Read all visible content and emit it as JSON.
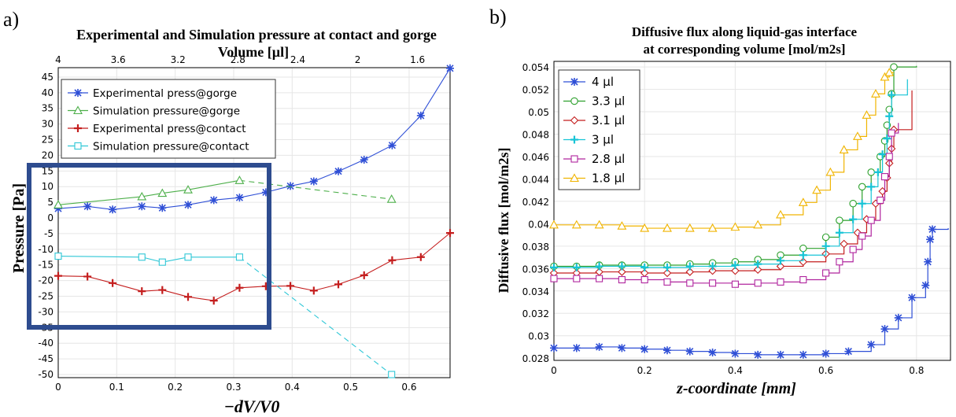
{
  "panel_labels": {
    "a": "a)",
    "b": "b)"
  },
  "chart_data": [
    {
      "type": "line",
      "panel": "a",
      "title": "Experimental and Simulation pressure at contact and gorge",
      "top_axis_label": "Volume [µl]",
      "top_ticks": [
        "4",
        "3.6",
        "3.2",
        "2.8",
        "2.4",
        "2",
        "1.6"
      ],
      "xlabel": "−dV/V0",
      "ylabel": "Pressure [Pa]",
      "xlim": [
        0,
        0.67
      ],
      "ylim": [
        -51,
        48
      ],
      "xticks": [
        0,
        0.1,
        0.2,
        0.3,
        0.4,
        0.5,
        0.6
      ],
      "xtick_labels": [
        "0",
        "0.1",
        "0.2",
        "0.3",
        "0.4",
        "0.5",
        "0.6"
      ],
      "yticks": [
        45,
        40,
        35,
        30,
        25,
        20,
        15,
        10,
        5,
        0,
        -5,
        -10,
        -15,
        -20,
        -25,
        -30,
        -35,
        -40,
        -45,
        -50
      ],
      "ytick_labels": [
        "45",
        "40",
        "35",
        "30",
        "25",
        "20",
        "15",
        "10",
        "5",
        "0",
        "-5",
        "-10",
        "-15",
        "-20",
        "-25",
        "-30",
        "-35",
        "-40",
        "-45",
        "-50"
      ],
      "grid": true,
      "legend_position": "top-left",
      "series": [
        {
          "name": "Experimental press@gorge",
          "color": "#2f4fd6",
          "marker": "star",
          "dashed": false,
          "x": [
            0,
            0.05,
            0.093,
            0.143,
            0.178,
            0.222,
            0.266,
            0.31,
            0.355,
            0.397,
            0.437,
            0.479,
            0.523,
            0.571,
            0.62,
            0.67
          ],
          "y": [
            3,
            3.7,
            2.7,
            3.7,
            3.2,
            4.2,
            5.7,
            6.5,
            8.2,
            10.2,
            11.7,
            14.9,
            18.6,
            23.2,
            32.7,
            47.8
          ]
        },
        {
          "name": "Simulation pressure@gorge",
          "color": "#4daf4a",
          "marker": "triangle",
          "dashed_after_index": 5,
          "x": [
            0,
            0.143,
            0.178,
            0.222,
            0.31,
            0.57
          ],
          "y": [
            4.2,
            6.8,
            7.9,
            9.0,
            12.0,
            6.0
          ]
        },
        {
          "name": "Experimental press@contact",
          "color": "#c41e1e",
          "marker": "plus",
          "dashed": false,
          "x": [
            0,
            0.05,
            0.093,
            0.143,
            0.178,
            0.222,
            0.266,
            0.31,
            0.355,
            0.397,
            0.437,
            0.479,
            0.523,
            0.571,
            0.62,
            0.67
          ],
          "y": [
            -18.5,
            -18.7,
            -20.8,
            -23.4,
            -23.0,
            -25.2,
            -26.4,
            -22.3,
            -21.8,
            -21.7,
            -23.2,
            -21.2,
            -18.3,
            -13.5,
            -12.5,
            -4.8
          ]
        },
        {
          "name": "Simulation pressure@contact",
          "color": "#2fc7d6",
          "marker": "square",
          "dashed_after_index": 5,
          "x": [
            0,
            0.143,
            0.178,
            0.222,
            0.31,
            0.57
          ],
          "y": [
            -12.2,
            -12.5,
            -14.1,
            -12.5,
            -12.5,
            -50
          ]
        }
      ]
    },
    {
      "type": "line",
      "panel": "b",
      "title": "Diffusive flux along liquid-gas interface",
      "subtitle": "at corresponding volume [mol/m2s]",
      "xlabel": "z-coordinate [mm]",
      "ylabel": "Diffusive flux [mol/m2s]",
      "xlim": [
        0,
        0.875
      ],
      "ylim": [
        0.0278,
        0.0545
      ],
      "xticks": [
        0,
        0.2,
        0.4,
        0.6,
        0.8
      ],
      "xtick_labels": [
        "0",
        "0.2",
        "0.4",
        "0.6",
        "0.8"
      ],
      "yticks": [
        0.028,
        0.03,
        0.032,
        0.034,
        0.036,
        0.038,
        0.04,
        0.042,
        0.044,
        0.046,
        0.048,
        0.05,
        0.052,
        0.054
      ],
      "ytick_labels": [
        "0.028",
        "0.03",
        "0.032",
        "0.034",
        "0.036",
        "0.038",
        "0.04",
        "0.042",
        "0.044",
        "0.046",
        "0.048",
        "0.05",
        "0.052",
        "0.054"
      ],
      "grid": true,
      "legend_position": "top-left",
      "series": [
        {
          "name": "4 µl",
          "color": "#2f4fd6",
          "marker": "star",
          "x": [
            0,
            0.05,
            0.1,
            0.15,
            0.2,
            0.25,
            0.3,
            0.35,
            0.4,
            0.45,
            0.5,
            0.55,
            0.6,
            0.65,
            0.7,
            0.73,
            0.76,
            0.79,
            0.82,
            0.825,
            0.83,
            0.835,
            0.87
          ],
          "y": [
            0.0289,
            0.0289,
            0.029,
            0.0289,
            0.0288,
            0.0287,
            0.0286,
            0.0285,
            0.0284,
            0.0283,
            0.0283,
            0.0283,
            0.0284,
            0.0286,
            0.0292,
            0.0306,
            0.0316,
            0.0334,
            0.0345,
            0.0366,
            0.0386,
            0.0395,
            0.0396
          ]
        },
        {
          "name": "3.3 µl",
          "color": "#2ca02c",
          "marker": "circle",
          "x": [
            0,
            0.05,
            0.1,
            0.15,
            0.2,
            0.25,
            0.3,
            0.35,
            0.4,
            0.45,
            0.5,
            0.55,
            0.6,
            0.63,
            0.66,
            0.68,
            0.7,
            0.72,
            0.73,
            0.735,
            0.74,
            0.745,
            0.75,
            0.8
          ],
          "y": [
            0.0362,
            0.0362,
            0.0363,
            0.0363,
            0.0363,
            0.0363,
            0.0364,
            0.0365,
            0.0366,
            0.0368,
            0.0372,
            0.0378,
            0.0388,
            0.0403,
            0.0418,
            0.0433,
            0.0446,
            0.046,
            0.0474,
            0.0488,
            0.0502,
            0.0516,
            0.054,
            0.0541
          ]
        },
        {
          "name": "3.1 µl",
          "color": "#c41e1e",
          "marker": "diamond",
          "x": [
            0,
            0.05,
            0.1,
            0.15,
            0.2,
            0.25,
            0.3,
            0.35,
            0.4,
            0.45,
            0.5,
            0.55,
            0.6,
            0.64,
            0.67,
            0.69,
            0.71,
            0.725,
            0.735,
            0.74,
            0.745,
            0.75,
            0.79
          ],
          "y": [
            0.0356,
            0.0356,
            0.0357,
            0.0357,
            0.0356,
            0.0356,
            0.0357,
            0.0358,
            0.0358,
            0.0359,
            0.0362,
            0.0366,
            0.0373,
            0.0382,
            0.0392,
            0.0404,
            0.0418,
            0.0429,
            0.0441,
            0.0454,
            0.0467,
            0.0484,
            0.0519
          ]
        },
        {
          "name": "3 µl",
          "color": "#17c4d6",
          "marker": "plus",
          "x": [
            0,
            0.05,
            0.1,
            0.15,
            0.2,
            0.25,
            0.3,
            0.35,
            0.4,
            0.45,
            0.5,
            0.55,
            0.6,
            0.63,
            0.66,
            0.68,
            0.7,
            0.715,
            0.725,
            0.735,
            0.74,
            0.745,
            0.78
          ],
          "y": [
            0.0361,
            0.0361,
            0.0362,
            0.0362,
            0.0361,
            0.0361,
            0.0362,
            0.0362,
            0.0363,
            0.0364,
            0.0367,
            0.0372,
            0.038,
            0.0392,
            0.0404,
            0.0418,
            0.0433,
            0.0446,
            0.0462,
            0.0476,
            0.0496,
            0.0515,
            0.0529
          ]
        },
        {
          "name": "2.8 µl",
          "color": "#b0259e",
          "marker": "square",
          "x": [
            0,
            0.05,
            0.1,
            0.15,
            0.2,
            0.25,
            0.3,
            0.35,
            0.4,
            0.45,
            0.5,
            0.55,
            0.6,
            0.63,
            0.66,
            0.68,
            0.7,
            0.72,
            0.73,
            0.74,
            0.745,
            0.76
          ],
          "y": [
            0.0351,
            0.0351,
            0.0351,
            0.035,
            0.035,
            0.0348,
            0.0347,
            0.0347,
            0.0346,
            0.0347,
            0.0348,
            0.035,
            0.0356,
            0.0366,
            0.0377,
            0.0389,
            0.0403,
            0.0421,
            0.0442,
            0.046,
            0.0481,
            0.049
          ]
        },
        {
          "name": "1.8 µl",
          "color": "#f0b400",
          "marker": "triangle",
          "x": [
            0,
            0.05,
            0.1,
            0.15,
            0.2,
            0.25,
            0.3,
            0.35,
            0.4,
            0.45,
            0.5,
            0.55,
            0.58,
            0.61,
            0.64,
            0.67,
            0.69,
            0.71,
            0.73,
            0.74,
            0.75
          ],
          "y": [
            0.0399,
            0.0399,
            0.0399,
            0.0398,
            0.0396,
            0.0396,
            0.0396,
            0.0396,
            0.0397,
            0.0399,
            0.0408,
            0.0419,
            0.043,
            0.0446,
            0.0466,
            0.0478,
            0.0497,
            0.0516,
            0.0531,
            0.0535,
            0.0535
          ]
        }
      ]
    }
  ]
}
